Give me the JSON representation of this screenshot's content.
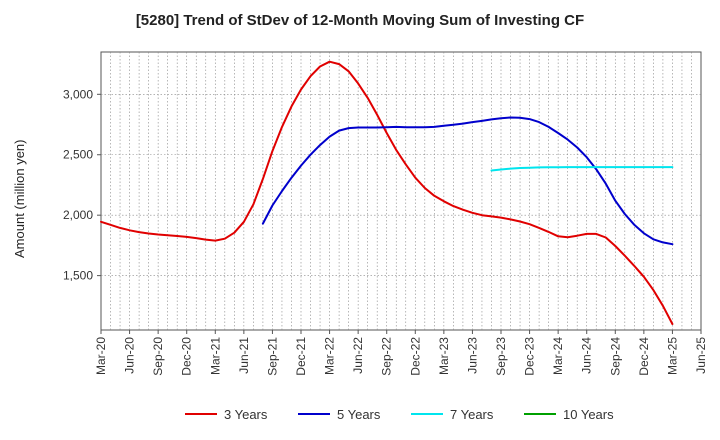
{
  "chart_data": {
    "type": "line",
    "title": "[5280]  Trend of StDev of 12-Month Moving Sum of Investing CF",
    "xlabel": "",
    "ylabel": "Amount (million yen)",
    "x_ticks": [
      "Mar-20",
      "Jun-20",
      "Sep-20",
      "Dec-20",
      "Mar-21",
      "Jun-21",
      "Sep-21",
      "Dec-21",
      "Mar-22",
      "Jun-22",
      "Sep-22",
      "Dec-22",
      "Mar-23",
      "Jun-23",
      "Sep-23",
      "Dec-23",
      "Mar-24",
      "Jun-24",
      "Sep-24",
      "Dec-24",
      "Mar-25",
      "Jun-25"
    ],
    "y_ticks": [
      1500,
      2000,
      2500,
      3000
    ],
    "y_tick_labels": [
      "1,500",
      "2,000",
      "2,500",
      "3,000"
    ],
    "ylim": [
      1050,
      3350
    ],
    "grid": true,
    "legend_position": "bottom",
    "series": [
      {
        "name": "3 Years",
        "color": "#e00000",
        "x": [
          "Mar-20",
          "Apr-20",
          "May-20",
          "Jun-20",
          "Jul-20",
          "Aug-20",
          "Sep-20",
          "Oct-20",
          "Nov-20",
          "Dec-20",
          "Jan-21",
          "Feb-21",
          "Mar-21",
          "Apr-21",
          "May-21",
          "Jun-21",
          "Jul-21",
          "Aug-21",
          "Sep-21",
          "Oct-21",
          "Nov-21",
          "Dec-21",
          "Jan-22",
          "Feb-22",
          "Mar-22",
          "Apr-22",
          "May-22",
          "Jun-22",
          "Jul-22",
          "Aug-22",
          "Sep-22",
          "Oct-22",
          "Nov-22",
          "Dec-22",
          "Jan-23",
          "Feb-23",
          "Mar-23",
          "Apr-23",
          "May-23",
          "Jun-23",
          "Jul-23",
          "Aug-23",
          "Sep-23",
          "Oct-23",
          "Nov-23",
          "Dec-23",
          "Jan-24",
          "Feb-24",
          "Mar-24",
          "Apr-24",
          "May-24",
          "Jun-24",
          "Jul-24",
          "Aug-24",
          "Sep-24",
          "Oct-24",
          "Nov-24",
          "Dec-24",
          "Jan-25",
          "Feb-25",
          "Mar-25"
        ],
        "values": [
          1945,
          1920,
          1895,
          1875,
          1860,
          1848,
          1840,
          1834,
          1828,
          1820,
          1810,
          1798,
          1790,
          1805,
          1855,
          1945,
          2090,
          2300,
          2530,
          2730,
          2900,
          3040,
          3150,
          3230,
          3270,
          3250,
          3190,
          3090,
          2970,
          2830,
          2680,
          2540,
          2420,
          2310,
          2225,
          2160,
          2115,
          2075,
          2045,
          2020,
          2000,
          1990,
          1980,
          1965,
          1948,
          1925,
          1895,
          1862,
          1825,
          1818,
          1830,
          1845,
          1845,
          1815,
          1745,
          1665,
          1580,
          1490,
          1380,
          1250,
          1100
        ]
      },
      {
        "name": "5 Years",
        "color": "#0000cc",
        "x": [
          "Aug-21",
          "Sep-21",
          "Oct-21",
          "Nov-21",
          "Dec-21",
          "Jan-22",
          "Feb-22",
          "Mar-22",
          "Apr-22",
          "May-22",
          "Jun-22",
          "Jul-22",
          "Aug-22",
          "Sep-22",
          "Oct-22",
          "Nov-22",
          "Dec-22",
          "Jan-23",
          "Feb-23",
          "Mar-23",
          "Apr-23",
          "May-23",
          "Jun-23",
          "Jul-23",
          "Aug-23",
          "Sep-23",
          "Oct-23",
          "Nov-23",
          "Dec-23",
          "Jan-24",
          "Feb-24",
          "Mar-24",
          "Apr-24",
          "May-24",
          "Jun-24",
          "Jul-24",
          "Aug-24",
          "Sep-24",
          "Oct-24",
          "Nov-24",
          "Dec-24",
          "Jan-25",
          "Feb-25",
          "Mar-25"
        ],
        "values": [
          1930,
          2080,
          2200,
          2310,
          2410,
          2500,
          2580,
          2650,
          2700,
          2720,
          2725,
          2725,
          2725,
          2728,
          2730,
          2728,
          2728,
          2728,
          2730,
          2740,
          2748,
          2758,
          2770,
          2780,
          2792,
          2802,
          2808,
          2806,
          2795,
          2770,
          2730,
          2680,
          2625,
          2560,
          2480,
          2380,
          2260,
          2120,
          2010,
          1920,
          1850,
          1800,
          1775,
          1760
        ]
      },
      {
        "name": "7 Years",
        "color": "#00e5ee",
        "x": [
          "Aug-23",
          "Sep-23",
          "Oct-23",
          "Nov-23",
          "Dec-23",
          "Jan-24",
          "Feb-24",
          "Mar-24",
          "Apr-24",
          "May-24",
          "Jun-24",
          "Jul-24",
          "Aug-24",
          "Sep-24",
          "Oct-24",
          "Nov-24",
          "Dec-24",
          "Jan-25",
          "Feb-25",
          "Mar-25"
        ],
        "values": [
          2370,
          2378,
          2385,
          2390,
          2393,
          2395,
          2396,
          2397,
          2398,
          2398,
          2398,
          2398,
          2398,
          2398,
          2398,
          2398,
          2398,
          2398,
          2398,
          2398
        ]
      },
      {
        "name": "10 Years",
        "color": "#00a000",
        "x": [],
        "values": []
      }
    ]
  }
}
